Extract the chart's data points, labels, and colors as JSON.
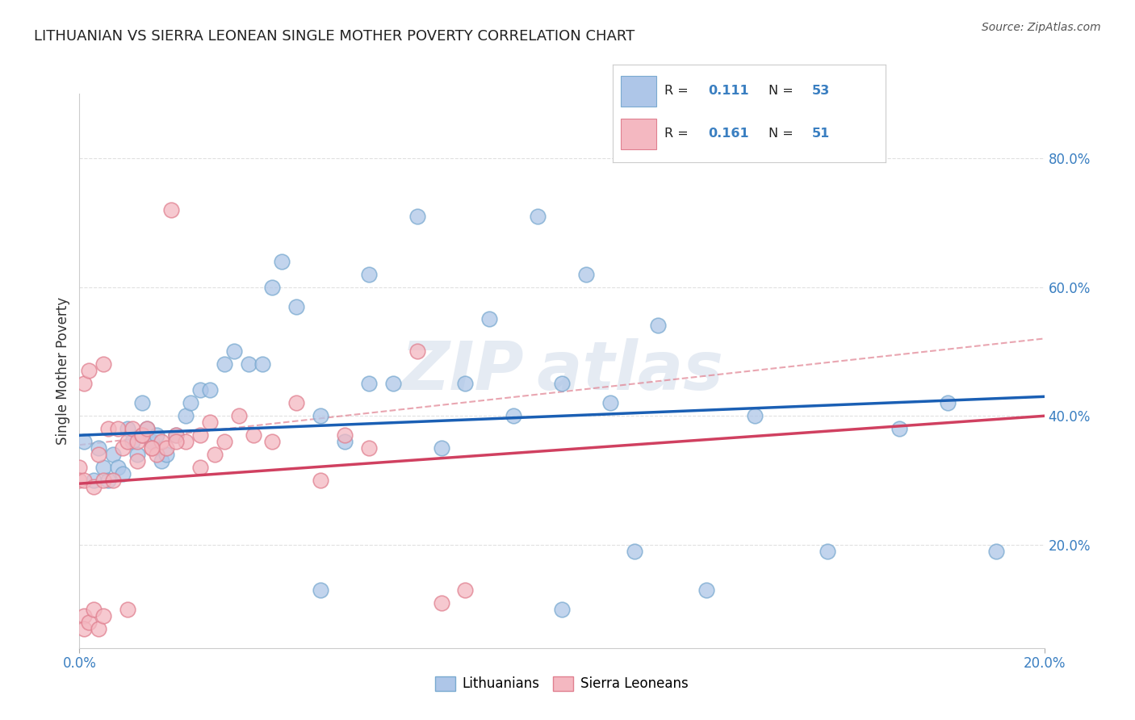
{
  "title": "LITHUANIAN VS SIERRA LEONEAN SINGLE MOTHER POVERTY CORRELATION CHART",
  "source": "Source: ZipAtlas.com",
  "ylabel": "Single Mother Poverty",
  "yaxis_labels": [
    "20.0%",
    "40.0%",
    "60.0%",
    "80.0%"
  ],
  "yaxis_values": [
    0.2,
    0.4,
    0.6,
    0.8
  ],
  "xlim": [
    0.0,
    0.2
  ],
  "ylim": [
    0.04,
    0.9
  ],
  "legend_entries": [
    {
      "label": "Lithuanians",
      "R": "0.111",
      "N": "53",
      "color": "#aec6e8"
    },
    {
      "label": "Sierra Leoneans",
      "R": "0.161",
      "N": "51",
      "color": "#f4b8c1"
    }
  ],
  "background_color": "#ffffff",
  "plot_bg_color": "#ffffff",
  "grid_color": "#e0e0e0",
  "blue_scatter_x": [
    0.001,
    0.003,
    0.004,
    0.005,
    0.006,
    0.007,
    0.008,
    0.009,
    0.01,
    0.011,
    0.012,
    0.013,
    0.014,
    0.015,
    0.016,
    0.017,
    0.018,
    0.02,
    0.022,
    0.023,
    0.025,
    0.027,
    0.03,
    0.032,
    0.035,
    0.038,
    0.04,
    0.042,
    0.045,
    0.05,
    0.055,
    0.06,
    0.065,
    0.07,
    0.075,
    0.08,
    0.09,
    0.095,
    0.1,
    0.105,
    0.11,
    0.115,
    0.12,
    0.13,
    0.14,
    0.155,
    0.17,
    0.18,
    0.06,
    0.085,
    0.05,
    0.1,
    0.19
  ],
  "blue_scatter_y": [
    0.36,
    0.3,
    0.35,
    0.32,
    0.3,
    0.34,
    0.32,
    0.31,
    0.38,
    0.36,
    0.34,
    0.42,
    0.38,
    0.36,
    0.37,
    0.33,
    0.34,
    0.37,
    0.4,
    0.42,
    0.44,
    0.44,
    0.48,
    0.5,
    0.48,
    0.48,
    0.6,
    0.64,
    0.57,
    0.4,
    0.36,
    0.45,
    0.45,
    0.71,
    0.35,
    0.45,
    0.4,
    0.71,
    0.45,
    0.62,
    0.42,
    0.19,
    0.54,
    0.13,
    0.4,
    0.19,
    0.38,
    0.42,
    0.62,
    0.55,
    0.13,
    0.1,
    0.19
  ],
  "pink_scatter_x": [
    0.0,
    0.0,
    0.001,
    0.001,
    0.002,
    0.003,
    0.004,
    0.005,
    0.005,
    0.006,
    0.007,
    0.008,
    0.009,
    0.01,
    0.011,
    0.012,
    0.013,
    0.013,
    0.014,
    0.015,
    0.016,
    0.017,
    0.018,
    0.019,
    0.02,
    0.022,
    0.025,
    0.027,
    0.03,
    0.033,
    0.036,
    0.04,
    0.045,
    0.05,
    0.055,
    0.06,
    0.07,
    0.075,
    0.08,
    0.012,
    0.015,
    0.02,
    0.025,
    0.028,
    0.001,
    0.001,
    0.002,
    0.003,
    0.004,
    0.005,
    0.01
  ],
  "pink_scatter_y": [
    0.32,
    0.3,
    0.45,
    0.3,
    0.47,
    0.29,
    0.34,
    0.48,
    0.3,
    0.38,
    0.3,
    0.38,
    0.35,
    0.36,
    0.38,
    0.36,
    0.37,
    0.37,
    0.38,
    0.35,
    0.34,
    0.36,
    0.35,
    0.72,
    0.37,
    0.36,
    0.37,
    0.39,
    0.36,
    0.4,
    0.37,
    0.36,
    0.42,
    0.3,
    0.37,
    0.35,
    0.5,
    0.11,
    0.13,
    0.33,
    0.35,
    0.36,
    0.32,
    0.34,
    0.09,
    0.07,
    0.08,
    0.1,
    0.07,
    0.09,
    0.1
  ],
  "blue_line_x": [
    0.0,
    0.2
  ],
  "blue_line_y": [
    0.37,
    0.43
  ],
  "pink_line_x": [
    0.0,
    0.2
  ],
  "pink_line_y": [
    0.295,
    0.4
  ],
  "dash_line_x": [
    0.0,
    0.2
  ],
  "dash_line_y": [
    0.355,
    0.52
  ],
  "dash_color": "#e08090",
  "blue_line_color": "#1a5fb4",
  "pink_line_color": "#d04060",
  "blue_edge_color": "#7aaad0",
  "pink_edge_color": "#e08090",
  "tick_color": "#3a7fc1",
  "title_color": "#222222",
  "source_color": "#555555",
  "ylabel_color": "#333333",
  "watermark_color": "#ccd8e8",
  "legend_text_color": "#222222",
  "legend_value_color": "#3a7fc1"
}
